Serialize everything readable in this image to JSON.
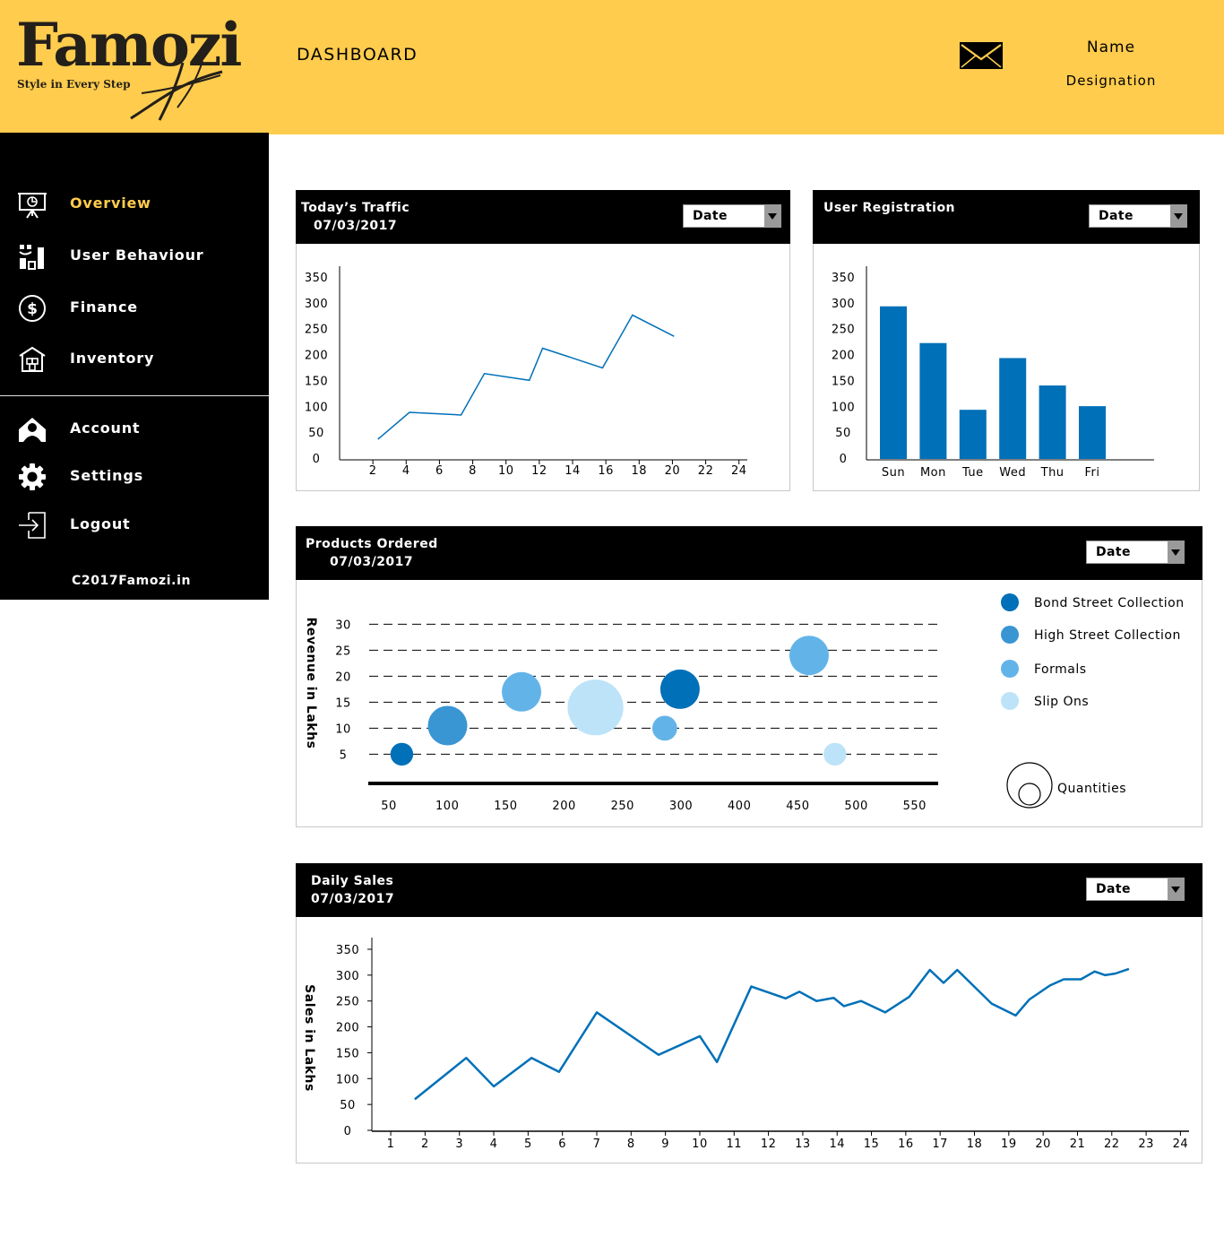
{
  "header": {
    "brand": "Famozi",
    "tagline": "Style in Every Step",
    "page_title": "DASHBOARD",
    "user_name": "Name",
    "user_designation": "Designation",
    "background_color": "#ffcc4d"
  },
  "sidebar": {
    "items": [
      {
        "label": "Overview",
        "icon": "presentation-icon",
        "active": true
      },
      {
        "label": "User Behaviour",
        "icon": "user-stats-icon",
        "active": false
      },
      {
        "label": "Finance",
        "icon": "dollar-icon",
        "active": false
      },
      {
        "label": "Inventory",
        "icon": "warehouse-icon",
        "active": false
      },
      {
        "label": "Account",
        "icon": "account-icon",
        "active": false
      },
      {
        "label": "Settings",
        "icon": "gear-icon",
        "active": false
      },
      {
        "label": "Logout",
        "icon": "logout-icon",
        "active": false
      }
    ],
    "copyright": "C2017Famozi.in",
    "active_color": "#ffcc4d"
  },
  "panels": {
    "traffic": {
      "title": "Today’s Traffic",
      "date": "07/03/2017",
      "select_label": "Date"
    },
    "registration": {
      "title": "User Registration",
      "select_label": "Date"
    },
    "products": {
      "title": "Products Ordered",
      "date": "07/03/2017",
      "select_label": "Date"
    },
    "sales": {
      "title": "Daily Sales",
      "date": "07/03/2017",
      "select_label": "Date"
    }
  },
  "chart_data": [
    {
      "id": "traffic",
      "type": "line",
      "title": "Today’s Traffic",
      "x_ticks": [
        2,
        4,
        6,
        8,
        10,
        12,
        14,
        16,
        18,
        20,
        22,
        24
      ],
      "y_ticks": [
        0,
        50,
        100,
        150,
        200,
        250,
        300,
        350
      ],
      "xlim": [
        0,
        24.5
      ],
      "ylim": [
        0,
        350
      ],
      "x": [
        2.3,
        4.2,
        7.3,
        8.7,
        11.4,
        12.2,
        15.8,
        17.6,
        20.1
      ],
      "y": [
        38,
        90,
        85,
        165,
        152,
        214,
        176,
        278,
        237
      ],
      "color": "#0070b8"
    },
    {
      "id": "registration",
      "type": "bar",
      "title": "User Registration",
      "categories": [
        "Sun",
        "Mon",
        "Tue",
        "Wed",
        "Thu",
        "Fri"
      ],
      "values": [
        295,
        224,
        95,
        195,
        142,
        102
      ],
      "y_ticks": [
        0,
        50,
        100,
        150,
        200,
        250,
        300,
        350
      ],
      "ylim": [
        0,
        350
      ],
      "color": "#0070b8"
    },
    {
      "id": "products",
      "type": "scatter",
      "title": "Products Ordered",
      "ylabel": "Revenue in Lakhs",
      "x_ticks": [
        50,
        100,
        150,
        200,
        250,
        300,
        400,
        450,
        500,
        550
      ],
      "y_ticks": [
        5,
        10,
        15,
        20,
        25,
        30
      ],
      "grid": true,
      "legend_position": "right",
      "size_legend_label": "Quantities",
      "series": [
        {
          "name": "Bond Street Collection",
          "color": "#0070b8",
          "points": [
            {
              "x": 61,
              "y": 5,
              "size": 1
            },
            {
              "x": 298,
              "y": 17.5,
              "size": 3
            }
          ]
        },
        {
          "name": "High Street Collection",
          "color": "#3a95d3",
          "points": [
            {
              "x": 100,
              "y": 10.5,
              "size": 3
            }
          ]
        },
        {
          "name": "Formals",
          "color": "#62b4e8",
          "points": [
            {
              "x": 163,
              "y": 17,
              "size": 3
            },
            {
              "x": 285,
              "y": 10,
              "size": 1.2
            },
            {
              "x": 408,
              "y": 24,
              "size": 3
            }
          ]
        },
        {
          "name": "Slip Ons",
          "color": "#bde3f8",
          "points": [
            {
              "x": 226,
              "y": 14,
              "size": 6
            },
            {
              "x": 430,
              "y": 5,
              "size": 1
            }
          ]
        }
      ]
    },
    {
      "id": "sales",
      "type": "line",
      "title": "Daily Sales",
      "ylabel": "Sales in Lakhs",
      "x_ticks": [
        1,
        2,
        3,
        4,
        5,
        6,
        7,
        8,
        9,
        10,
        11,
        12,
        13,
        14,
        15,
        16,
        17,
        18,
        19,
        20,
        21,
        22,
        23,
        24
      ],
      "y_ticks": [
        0,
        50,
        100,
        150,
        200,
        250,
        300,
        350
      ],
      "xlim": [
        0.45,
        24.25
      ],
      "ylim": [
        0,
        350
      ],
      "x": [
        1.7,
        3.2,
        4.0,
        5.1,
        5.9,
        7.0,
        8.8,
        10.0,
        10.5,
        11.5,
        12.5,
        12.9,
        13.4,
        13.9,
        14.2,
        14.7,
        15.4,
        16.1,
        16.7,
        17.1,
        17.5,
        18.5,
        19.2,
        19.6,
        20.2,
        20.6,
        21.1,
        21.5,
        21.8,
        22.1,
        22.5
      ],
      "y": [
        60,
        140,
        85,
        140,
        113,
        228,
        146,
        182,
        132,
        278,
        255,
        268,
        250,
        256,
        240,
        250,
        228,
        258,
        310,
        285,
        310,
        245,
        222,
        253,
        280,
        292,
        292,
        307,
        300,
        303,
        312
      ],
      "color": "#0070b8"
    }
  ]
}
